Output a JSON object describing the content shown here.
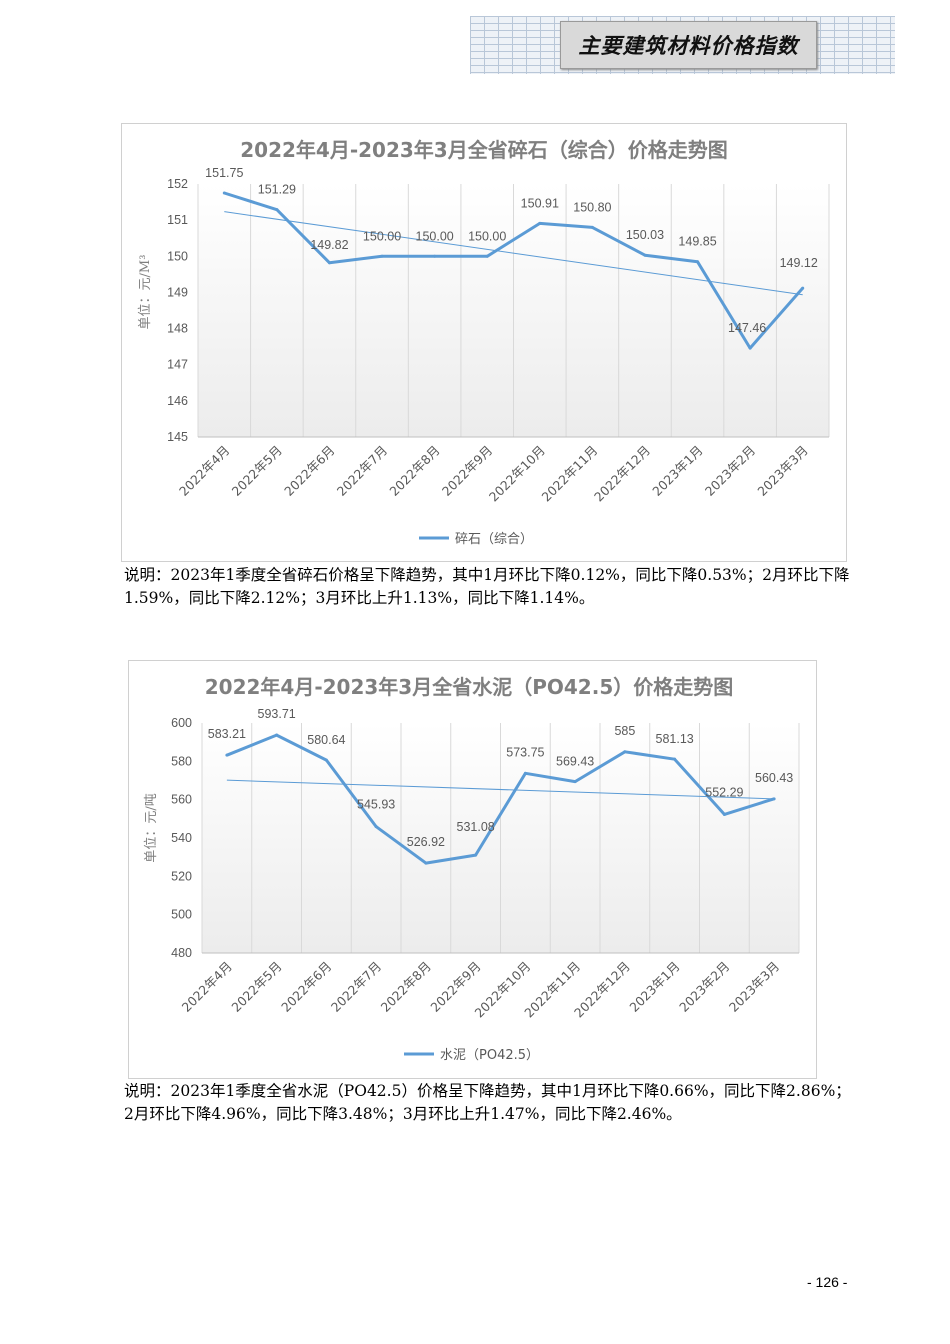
{
  "header": {
    "title": "主要建筑材料价格指数"
  },
  "charts": [
    {
      "chart_data": {
        "type": "line",
        "title": "2022年4月-2023年3月全省碎石（综合）价格走势图",
        "ylabel": "单位：元/M³",
        "xlabel": "",
        "categories": [
          "2022年4月",
          "2022年5月",
          "2022年6月",
          "2022年7月",
          "2022年8月",
          "2022年9月",
          "2022年10月",
          "2022年11月",
          "2022年12月",
          "2023年1月",
          "2023年2月",
          "2023年3月"
        ],
        "series": [
          {
            "name": "碎石（综合）",
            "values": [
              151.75,
              151.29,
              149.82,
              150.0,
              150.0,
              150.0,
              150.91,
              150.8,
              150.03,
              149.85,
              147.46,
              149.12
            ],
            "labels": [
              "151.75",
              "151.29",
              "149.82",
              "150.00",
              "150.00",
              "150.00",
              "150.91",
              "150.80",
              "150.03",
              "149.85",
              "147.46",
              "149.12"
            ],
            "color": "#5b9bd5"
          }
        ],
        "trendline": {
          "show": true,
          "color": "#5b9bd5"
        },
        "ylim": [
          145,
          152
        ],
        "yticks": [
          "145",
          "146",
          "147",
          "148",
          "149",
          "150",
          "151",
          "152"
        ],
        "grid": "vertical",
        "legend": "bottom"
      },
      "note": "说明：2023年1季度全省碎石价格呈下降趋势，其中1月环比下降0.12%，同比下降0.53%；2月环比下降1.59%，同比下降2.12%；3月环比上升1.13%，同比下降1.14%。"
    },
    {
      "chart_data": {
        "type": "line",
        "title": "2022年4月-2023年3月全省水泥（PO42.5）价格走势图",
        "ylabel": "单位：元/吨",
        "xlabel": "",
        "categories": [
          "2022年4月",
          "2022年5月",
          "2022年6月",
          "2022年7月",
          "2022年8月",
          "2022年9月",
          "2022年10月",
          "2022年11月",
          "2022年12月",
          "2023年1月",
          "2023年2月",
          "2023年3月"
        ],
        "series": [
          {
            "name": "水泥（PO42.5）",
            "values": [
              583.21,
              593.71,
              580.64,
              545.93,
              526.92,
              531.08,
              573.75,
              569.43,
              585,
              581.13,
              552.29,
              560.43
            ],
            "labels": [
              "583.21",
              "593.71",
              "580.64",
              "545.93",
              "526.92",
              "531.08",
              "573.75",
              "569.43",
              "585",
              "581.13",
              "552.29",
              "560.43"
            ],
            "color": "#5b9bd5"
          }
        ],
        "trendline": {
          "show": true,
          "color": "#5b9bd5"
        },
        "ylim": [
          480,
          600
        ],
        "yticks": [
          "480",
          "500",
          "520",
          "540",
          "560",
          "580",
          "600"
        ],
        "grid": "vertical",
        "legend": "bottom"
      },
      "note": "说明：2023年1季度全省水泥（PO42.5）价格呈下降趋势，其中1月环比下降0.66%，同比下降2.86%；2月环比下降4.96%，同比下降3.48%；3月环比上升1.47%，同比下降2.46%。"
    }
  ],
  "footer": {
    "page_number": "- 126 -"
  }
}
